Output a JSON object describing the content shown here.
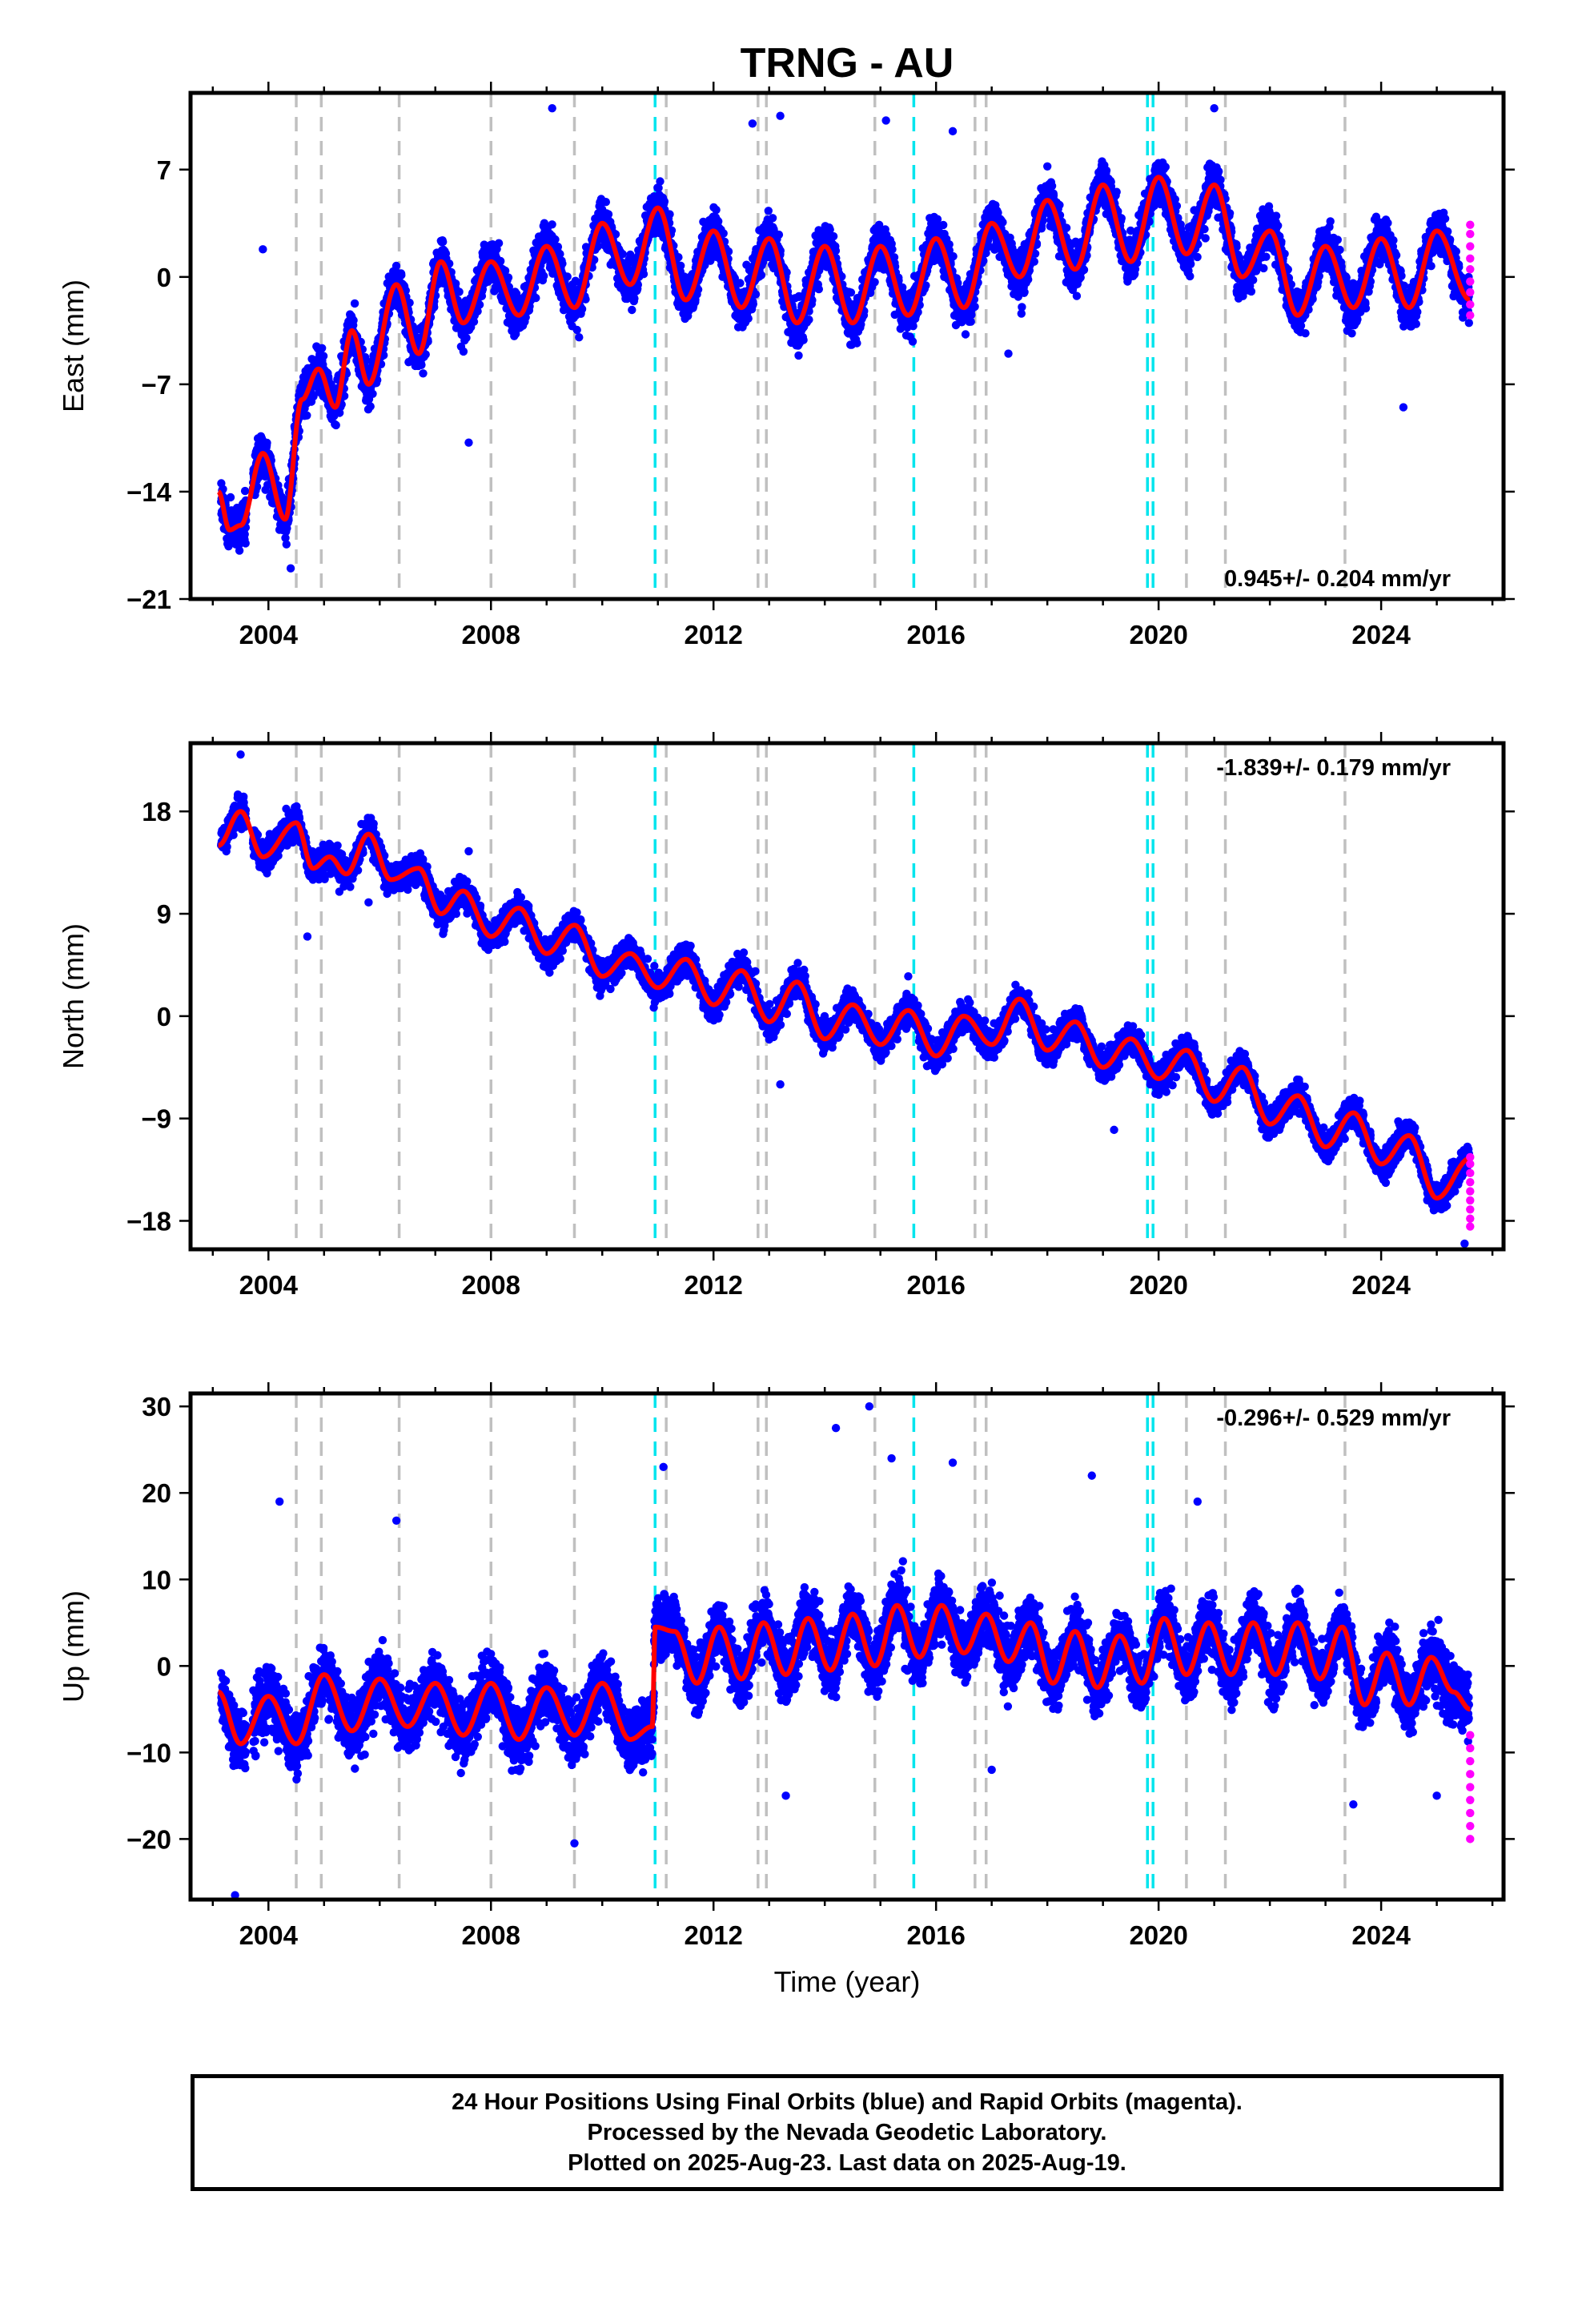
{
  "title": "TRNG - AU",
  "x_axis": {
    "label": "Time (year)",
    "min": 2002.6,
    "max": 2026.2,
    "ticks": [
      "2004",
      "2008",
      "2012",
      "2016",
      "2020",
      "2024"
    ]
  },
  "footer": {
    "line1": "24 Hour Positions Using Final Orbits (blue) and Rapid Orbits (magenta).",
    "line2": "Processed by the Nevada Geodetic Laboratory.",
    "line3": "Plotted on 2025-Aug-23. Last data on 2025-Aug-19."
  },
  "colors": {
    "final_orbits": "#0000ff",
    "rapid_orbits": "#ff00ff",
    "model_fit": "#ff0000",
    "equipment_change": "#c0c0c0",
    "earthquake": "#00e5ee"
  },
  "chart_data": [
    {
      "type": "scatter",
      "name": "east",
      "ylabel": "East (mm)",
      "ylim": [
        -21,
        12
      ],
      "yticks": [
        "7",
        "0",
        "−7",
        "−14",
        "−21"
      ],
      "rate_text": "0.945+/- 0.204 mm/yr",
      "rate_position": "bottom-right",
      "fit_nodes": {
        "t": [
          2003.1,
          2003.3,
          2003.5,
          2003.9,
          2004.3,
          2004.6,
          2004.9,
          2005.2,
          2005.5,
          2005.8,
          2006.3,
          2006.7,
          2007.1,
          2007.5,
          2008.0,
          2008.5,
          2009.0,
          2009.5,
          2010.0,
          2010.5,
          2011.0,
          2011.5,
          2012.0,
          2012.5,
          2013.0,
          2013.5,
          2014.0,
          2014.5,
          2015.0,
          2015.5,
          2016.0,
          2016.5,
          2017.0,
          2017.5,
          2018.0,
          2018.5,
          2019.0,
          2019.5,
          2020.0,
          2020.5,
          2021.0,
          2021.5,
          2022.0,
          2022.5,
          2023.0,
          2023.5,
          2024.0,
          2024.5,
          2025.0,
          2025.6
        ],
        "v": [
          -14.0,
          -16.5,
          -16.2,
          -11.5,
          -15.8,
          -8.0,
          -6.0,
          -8.5,
          -3.5,
          -7.0,
          -0.5,
          -5.0,
          1.0,
          -3.0,
          1.0,
          -2.5,
          2.0,
          -2.0,
          3.5,
          -0.5,
          4.5,
          -1.5,
          3.0,
          -2.0,
          2.5,
          -3.0,
          2.0,
          -3.0,
          2.0,
          -2.5,
          2.5,
          -2.0,
          3.5,
          0.0,
          5.0,
          0.5,
          6.0,
          1.0,
          6.5,
          1.5,
          6.0,
          0.0,
          3.0,
          -2.5,
          2.0,
          -2.0,
          2.5,
          -2.0,
          3.0,
          -1.5
        ]
      },
      "noise_mm": 1.6,
      "outliers": [
        [
          2009.1,
          11.0
        ],
        [
          2012.7,
          10.0
        ],
        [
          2013.2,
          10.5
        ],
        [
          2015.1,
          10.2
        ],
        [
          2003.9,
          1.8
        ],
        [
          2007.6,
          -10.8
        ],
        [
          2017.3,
          -5.0
        ],
        [
          2024.4,
          -8.5
        ],
        [
          2004.4,
          -19.0
        ],
        [
          2016.3,
          9.5
        ],
        [
          2021.0,
          11.0
        ]
      ],
      "rapid_orbits": {
        "t": 2025.6,
        "values": [
          -2.5,
          -1.8,
          -1.0,
          -0.3,
          0.5,
          1.2,
          2.0,
          2.8,
          3.4
        ]
      }
    },
    {
      "type": "scatter",
      "name": "north",
      "ylabel": "North (mm)",
      "ylim": [
        -20.5,
        24
      ],
      "yticks": [
        "18",
        "9",
        "0",
        "−9",
        "−18"
      ],
      "rate_text": "-1.839+/- 0.179 mm/yr",
      "rate_position": "top-right",
      "fit_nodes": {
        "t": [
          2003.1,
          2003.5,
          2003.9,
          2004.5,
          2004.8,
          2005.1,
          2005.4,
          2005.8,
          2006.2,
          2006.7,
          2007.1,
          2007.5,
          2008.0,
          2008.5,
          2009.0,
          2009.5,
          2010.0,
          2010.5,
          2011.0,
          2011.5,
          2012.0,
          2012.5,
          2013.0,
          2013.5,
          2014.0,
          2014.5,
          2015.0,
          2015.5,
          2016.0,
          2016.5,
          2017.0,
          2017.5,
          2018.0,
          2018.5,
          2019.0,
          2019.5,
          2020.0,
          2020.5,
          2021.0,
          2021.5,
          2022.0,
          2022.5,
          2023.0,
          2023.5,
          2024.0,
          2024.5,
          2025.0,
          2025.6
        ],
        "v": [
          15.0,
          18.0,
          14.0,
          17.0,
          13.0,
          14.0,
          12.5,
          16.0,
          12.0,
          13.0,
          9.0,
          11.0,
          7.0,
          9.5,
          5.5,
          8.0,
          3.5,
          5.5,
          2.5,
          5.0,
          1.0,
          4.0,
          -0.5,
          3.0,
          -2.0,
          1.0,
          -2.5,
          0.5,
          -3.5,
          0.0,
          -2.5,
          1.5,
          -3.0,
          -0.5,
          -4.5,
          -2.0,
          -5.5,
          -3.0,
          -7.5,
          -4.5,
          -9.5,
          -7.0,
          -11.5,
          -8.5,
          -13.0,
          -10.5,
          -16.0,
          -12.5
        ]
      },
      "noise_mm": 1.4,
      "outliers": [
        [
          2003.5,
          23.0
        ],
        [
          2004.7,
          7.0
        ],
        [
          2005.8,
          10.0
        ],
        [
          2007.6,
          14.5
        ],
        [
          2015.5,
          3.5
        ],
        [
          2019.2,
          -10.0
        ],
        [
          2013.2,
          -6.0
        ],
        [
          2025.5,
          -20.0
        ]
      ],
      "rapid_orbits": {
        "t": 2025.6,
        "values": [
          -18.5,
          -17.8,
          -17.0,
          -16.2,
          -15.4,
          -14.6,
          -13.8,
          -13.0,
          -12.4
        ]
      }
    },
    {
      "type": "scatter",
      "name": "up",
      "ylabel": "Up (mm)",
      "ylim": [
        -27,
        31.5
      ],
      "yticks": [
        "30",
        "20",
        "10",
        "0",
        "−10",
        "−20"
      ],
      "rate_text": "-0.296+/- 0.529 mm/yr",
      "rate_position": "top-right",
      "fit_nodes": {
        "t": [
          2003.1,
          2003.5,
          2004.0,
          2004.5,
          2005.0,
          2005.5,
          2006.0,
          2006.5,
          2007.0,
          2007.5,
          2008.0,
          2008.5,
          2009.0,
          2009.5,
          2010.0,
          2010.5,
          2010.9,
          2010.95,
          2011.3,
          2011.7,
          2012.1,
          2012.5,
          2012.9,
          2013.3,
          2013.7,
          2014.1,
          2014.5,
          2014.9,
          2015.3,
          2015.7,
          2016.1,
          2016.5,
          2016.9,
          2017.3,
          2017.7,
          2018.1,
          2018.5,
          2018.9,
          2019.3,
          2019.7,
          2020.1,
          2020.5,
          2020.9,
          2021.3,
          2021.7,
          2022.1,
          2022.5,
          2022.9,
          2023.3,
          2023.7,
          2024.1,
          2024.5,
          2024.9,
          2025.3,
          2025.6
        ],
        "v": [
          -3.0,
          -9.0,
          -3.5,
          -9.0,
          -1.0,
          -7.5,
          -1.5,
          -7.0,
          -2.0,
          -8.0,
          -2.0,
          -8.5,
          -2.5,
          -8.0,
          -2.0,
          -8.5,
          -7.0,
          4.5,
          4.0,
          -2.0,
          4.5,
          -1.5,
          5.0,
          -1.0,
          5.5,
          -0.5,
          6.0,
          0.0,
          7.0,
          1.0,
          7.0,
          1.5,
          6.0,
          0.5,
          5.0,
          -2.0,
          4.0,
          -2.5,
          3.5,
          -2.0,
          5.5,
          -1.0,
          5.0,
          -1.0,
          5.0,
          -1.0,
          5.0,
          -1.5,
          4.5,
          -4.5,
          1.5,
          -4.5,
          1.0,
          -3.0,
          -5.0
        ]
      },
      "noise_mm": 3.8,
      "outliers": [
        [
          2003.4,
          -26.5
        ],
        [
          2004.2,
          19.0
        ],
        [
          2009.5,
          -20.5
        ],
        [
          2011.1,
          23.0
        ],
        [
          2014.2,
          27.5
        ],
        [
          2014.8,
          30.0
        ],
        [
          2015.2,
          24.0
        ],
        [
          2016.3,
          23.5
        ],
        [
          2017.0,
          -12.0
        ],
        [
          2018.8,
          22.0
        ],
        [
          2020.7,
          19.0
        ],
        [
          2023.5,
          -16.0
        ],
        [
          2025.0,
          -15.0
        ],
        [
          2013.3,
          -15.0
        ],
        [
          2006.3,
          16.8
        ]
      ],
      "rapid_orbits": {
        "t": 2025.6,
        "values": [
          -20.0,
          -18.5,
          -17.0,
          -15.5,
          -14.0,
          -12.5,
          -11.0,
          -9.5,
          -8.0
        ]
      }
    }
  ],
  "equipment_changes": [
    2004.5,
    2004.95,
    2006.35,
    2008.0,
    2009.5,
    2011.15,
    2012.8,
    2012.95,
    2014.9,
    2016.7,
    2016.9,
    2020.5,
    2021.2,
    2023.35
  ],
  "earthquakes": [
    2010.95,
    2015.6,
    2019.8,
    2019.9
  ]
}
